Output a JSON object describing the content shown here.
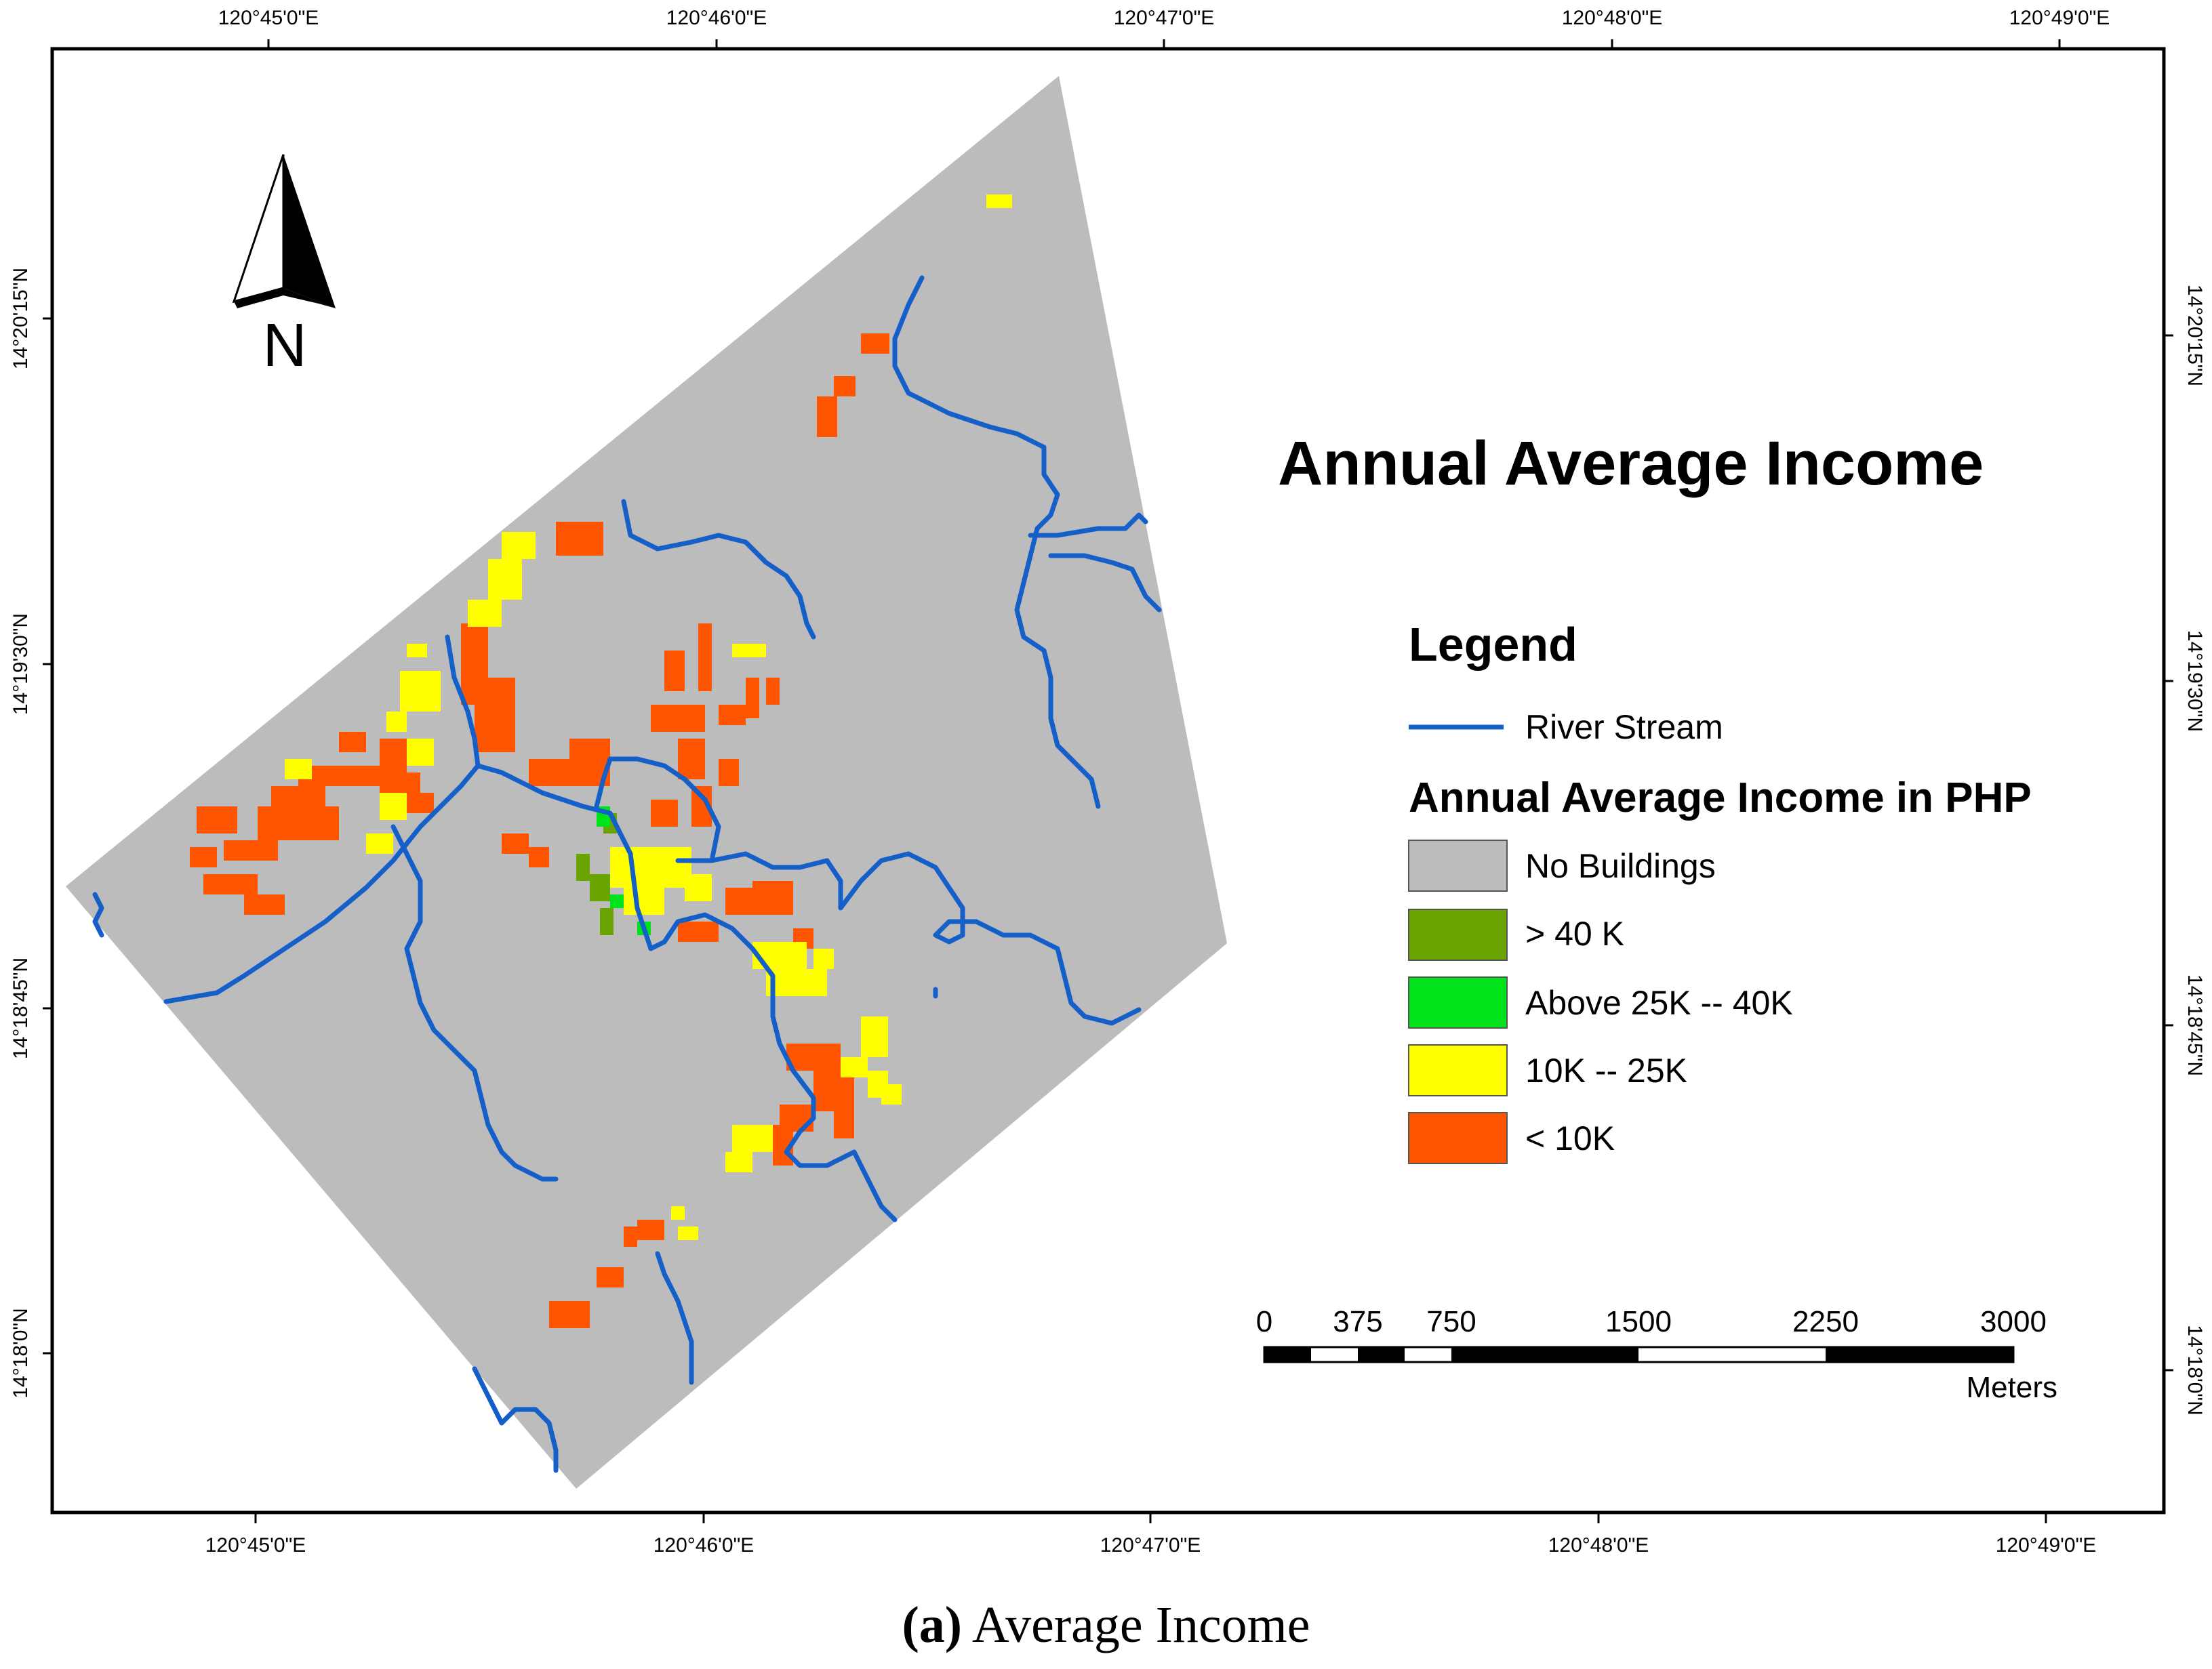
{
  "map": {
    "title": "Annual Average Income",
    "north_label": "N",
    "colors": {
      "no_buildings": "#bcbcbc",
      "gt_40k": "#6aa400",
      "above_25k_40k": "#00e31a",
      "k10_25k": "#ffff00",
      "lt_10k": "#ff5500",
      "river": "#1460c8"
    },
    "top_ticks": [
      "120°45'0\"E",
      "120°46'0\"E",
      "120°47'0\"E",
      "120°48'0\"E",
      "120°49'0\"E"
    ],
    "bottom_ticks": [
      "120°45'0\"E",
      "120°46'0\"E",
      "120°47'0\"E",
      "120°48'0\"E",
      "120°49'0\"E"
    ],
    "left_ticks": [
      "14°20'15\"N",
      "14°19'30\"N",
      "14°18'45\"N",
      "14°18'0\"N"
    ],
    "right_ticks": [
      "14°20'15\"N",
      "14°19'30\"N",
      "14°18'45\"N",
      "14°18'0\"N"
    ]
  },
  "legend": {
    "heading": "Legend",
    "river_label": "River Stream",
    "income_heading": "Annual Average Income in PHP",
    "classes": [
      {
        "label": "No Buildings",
        "color": "#bcbcbc"
      },
      {
        "label": "> 40 K",
        "color": "#6aa400"
      },
      {
        "label": "Above 25K -- 40K",
        "color": "#00e31a"
      },
      {
        "label": "10K -- 25K",
        "color": "#ffff00"
      },
      {
        "label": "< 10K",
        "color": "#ff5500"
      }
    ]
  },
  "scale_bar": {
    "labels": [
      "0",
      "375",
      "750",
      "1500",
      "2250",
      "3000"
    ],
    "unit": "Meters"
  },
  "caption": {
    "label": "(a)",
    "text": "Average Income"
  }
}
